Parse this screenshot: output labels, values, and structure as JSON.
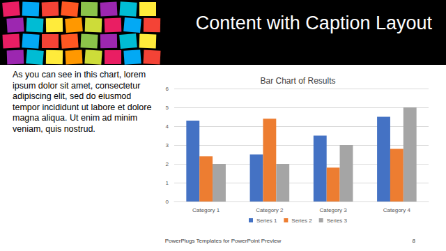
{
  "chart_data": {
    "type": "bar",
    "title": "Bar Chart of Results",
    "categories": [
      "Category 1",
      "Category 2",
      "Category 3",
      "Category 4"
    ],
    "series": [
      {
        "name": "Series 1",
        "color": "#4472c4",
        "values": [
          4.3,
          2.5,
          3.5,
          4.5
        ]
      },
      {
        "name": "Series 2",
        "color": "#ed7d31",
        "values": [
          2.4,
          4.4,
          1.8,
          2.8
        ]
      },
      {
        "name": "Series 3",
        "color": "#a5a5a5",
        "values": [
          2,
          2,
          3,
          5
        ]
      }
    ],
    "ylim": [
      0,
      6
    ],
    "yticks": [
      0,
      1,
      2,
      3,
      4,
      5,
      6
    ],
    "grid": true,
    "legend": "bottom"
  },
  "slide": {
    "title": "Content with Caption Layout",
    "caption": "As you can see in this chart, lorem ipsum dolor sit amet, consectetur adipiscing elit, sed do eiusmod tempor incididunt ut labore et dolore magna aliqua. Ut enim ad minim veniam, quis nostrud.",
    "footer": "PowerPlugs Templates for PowerPoint Preview",
    "page_number": 8
  }
}
